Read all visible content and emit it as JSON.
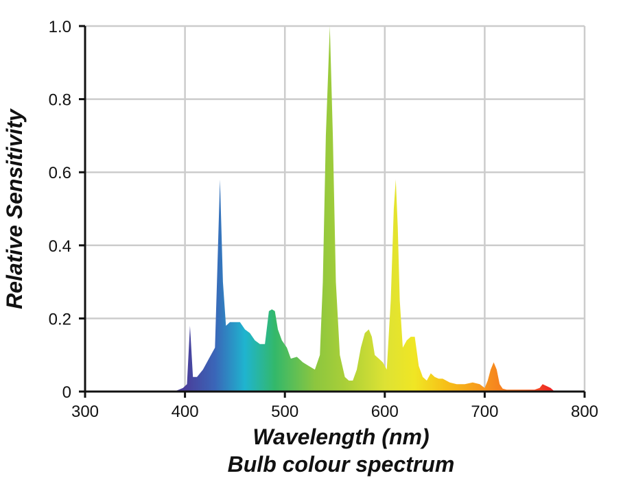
{
  "chart_data": {
    "type": "area",
    "title": "Bulb colour spectrum",
    "xlabel": "Wavelength (nm)",
    "ylabel": "Relative Sensitivity",
    "xlim": [
      300,
      800
    ],
    "ylim": [
      0,
      1.0
    ],
    "grid": true,
    "x_ticks": [
      300,
      400,
      500,
      600,
      700,
      800
    ],
    "x_tick_labels": [
      "300",
      "400",
      "500",
      "600",
      "700",
      "800"
    ],
    "y_ticks": [
      0,
      0.2,
      0.4,
      0.6,
      0.8,
      1.0
    ],
    "y_tick_labels": [
      "0",
      "0.2",
      "0.4",
      "0.6",
      "0.8",
      "1.0"
    ],
    "fill_gradient": {
      "stops": [
        {
          "wavelength": 400,
          "color": "#4a3e9a"
        },
        {
          "wavelength": 430,
          "color": "#3a66b8"
        },
        {
          "wavelength": 460,
          "color": "#1fb4cf"
        },
        {
          "wavelength": 490,
          "color": "#33b86a"
        },
        {
          "wavelength": 530,
          "color": "#8cc63f"
        },
        {
          "wavelength": 560,
          "color": "#a9cf38"
        },
        {
          "wavelength": 600,
          "color": "#dde234"
        },
        {
          "wavelength": 630,
          "color": "#f0e624"
        },
        {
          "wavelength": 660,
          "color": "#f6c118"
        },
        {
          "wavelength": 700,
          "color": "#f7941d"
        },
        {
          "wavelength": 740,
          "color": "#f26522"
        },
        {
          "wavelength": 770,
          "color": "#ed1c24"
        }
      ]
    },
    "series": [
      {
        "name": "Bulb colour spectrum",
        "x": [
          380,
          392,
          398,
          402,
          405,
          408,
          412,
          418,
          424,
          430,
          432,
          435,
          438,
          441,
          445,
          450,
          455,
          460,
          465,
          470,
          475,
          480,
          484,
          487,
          490,
          493,
          497,
          502,
          506,
          512,
          518,
          524,
          530,
          535,
          538,
          541,
          545,
          548,
          551,
          555,
          560,
          564,
          568,
          572,
          576,
          580,
          584,
          587,
          590,
          594,
          598,
          602,
          606,
          609,
          611,
          613,
          615,
          618,
          622,
          626,
          630,
          634,
          638,
          642,
          646,
          650,
          654,
          658,
          665,
          672,
          680,
          688,
          695,
          700,
          703,
          706,
          709,
          712,
          715,
          718,
          722,
          730,
          740,
          750,
          755,
          758,
          762,
          766,
          770
        ],
        "y": [
          0,
          0.003,
          0.01,
          0.02,
          0.18,
          0.04,
          0.04,
          0.06,
          0.09,
          0.12,
          0.3,
          0.58,
          0.3,
          0.18,
          0.19,
          0.19,
          0.19,
          0.17,
          0.16,
          0.14,
          0.13,
          0.13,
          0.22,
          0.225,
          0.22,
          0.17,
          0.14,
          0.12,
          0.09,
          0.095,
          0.08,
          0.07,
          0.06,
          0.1,
          0.3,
          0.7,
          1.0,
          0.7,
          0.3,
          0.1,
          0.04,
          0.03,
          0.03,
          0.06,
          0.12,
          0.16,
          0.17,
          0.15,
          0.1,
          0.09,
          0.08,
          0.06,
          0.25,
          0.5,
          0.58,
          0.45,
          0.25,
          0.12,
          0.14,
          0.15,
          0.15,
          0.07,
          0.04,
          0.03,
          0.05,
          0.04,
          0.035,
          0.035,
          0.025,
          0.02,
          0.02,
          0.025,
          0.02,
          0.01,
          0.03,
          0.06,
          0.08,
          0.06,
          0.02,
          0.008,
          0.005,
          0.005,
          0.005,
          0.005,
          0.01,
          0.02,
          0.015,
          0.01,
          0
        ]
      }
    ]
  }
}
